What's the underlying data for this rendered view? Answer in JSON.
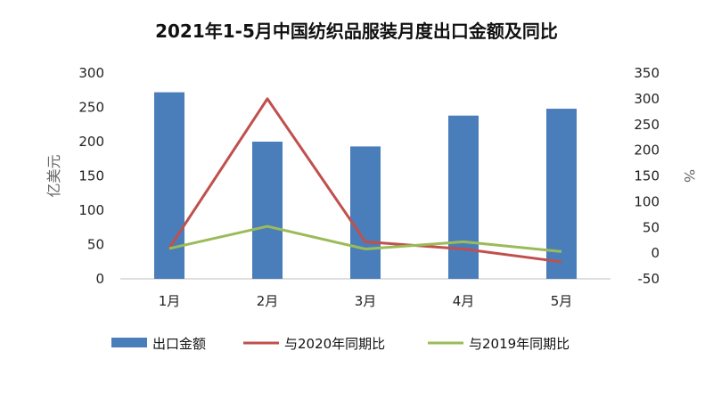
{
  "chart_data": {
    "type": "bar",
    "title": "2021年1-5月中国纺织品服装月度出口金额及同比",
    "categories": [
      "1月",
      "2月",
      "3月",
      "4月",
      "5月"
    ],
    "y_left": {
      "label": "亿美元",
      "range": [
        0,
        300
      ],
      "ticks": [
        0,
        50,
        100,
        150,
        200,
        250,
        300
      ]
    },
    "y_right": {
      "label": "%",
      "range": [
        -50,
        350
      ],
      "ticks": [
        -50,
        0,
        50,
        100,
        150,
        200,
        250,
        300,
        350
      ]
    },
    "series": [
      {
        "name": "出口金额",
        "type": "bar",
        "axis": "left",
        "color": "#4a7ebb",
        "values": [
          272,
          200,
          193,
          238,
          248
        ]
      },
      {
        "name": "与2020年同期比",
        "type": "line",
        "axis": "right",
        "color": "#c0504d",
        "values": [
          10,
          300,
          22,
          8,
          -17
        ]
      },
      {
        "name": "与2019年同期比",
        "type": "line",
        "axis": "right",
        "color": "#9bbb59",
        "values": [
          9,
          52,
          8,
          22,
          3
        ]
      }
    ],
    "grid": false,
    "legend_position": "bottom"
  }
}
